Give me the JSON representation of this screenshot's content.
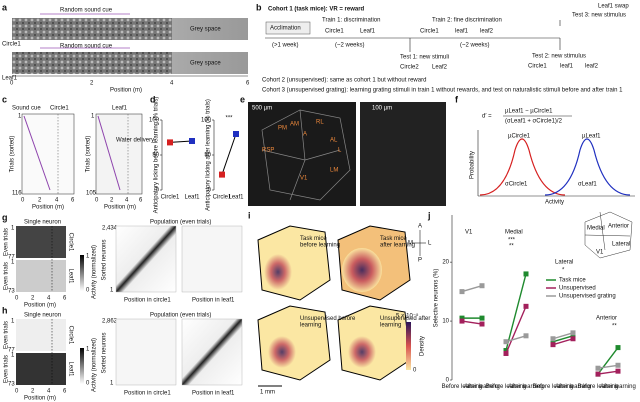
{
  "panel_a": {
    "letter": "a",
    "cue_top": "Random sound cue",
    "stim_top": "Circle1",
    "grey_top": "Grey space",
    "cue_bottom": "Random sound cue",
    "stim_bottom": "Leaf1",
    "grey_bottom": "Grey space",
    "x_label": "Position (m)",
    "x_ticks": [
      0,
      2,
      4,
      6
    ]
  },
  "panel_b": {
    "letter": "b",
    "cohort1": "Cohort 1 (task mice): VR = reward",
    "acclimation": "Acclimation",
    "acclimation_time": "(>1 week)",
    "train1": "Train 1: discrimination",
    "train1_time": "(~2 weeks)",
    "train1_stim": [
      "Circle1",
      "Leaf1"
    ],
    "test1": "Test 1: new stimuli",
    "test1_stim": [
      "Circle2",
      "Leaf2"
    ],
    "train2": "Train 2: fine discrimination",
    "train2_time": "(~2 weeks)",
    "train2_stim": [
      "Circle1",
      "leaf1",
      "leaf2"
    ],
    "test2": "Test 2: new stimulus",
    "test2_stim": [
      "Circle1",
      "leaf1",
      "leaf2"
    ],
    "test3": "Test 3: new stimulus",
    "test3_stim": "Leaf1 swap",
    "cohort2": "Cohort 2 (unsupervised): same as cohort 1 but without reward",
    "cohort3": "Cohort 3 (unsupervised grating): learning grating stimuli in train 1 without rewards, and test on naturalistic stimuli before and after train 1"
  },
  "panel_c": {
    "letter": "c",
    "sound_cue": "Sound cue",
    "left_title": "Circle1",
    "right_title": "Leaf1",
    "y_label_left": "Trials (sorted)",
    "y_label_right": "Trials (sorted)",
    "left_trials": [
      1,
      116
    ],
    "right_trials": [
      1,
      105
    ],
    "x_ticks_left": [
      0,
      2,
      4,
      6
    ],
    "x_ticks_right": [
      0,
      2,
      4,
      6
    ],
    "x_label_left": "Position (m)",
    "x_label_right": "Position (m)",
    "water": "Water delivery"
  },
  "panel_d": {
    "letter": "d",
    "before": {
      "y_label": "Anticipatory licking before learning (% trials)",
      "ylim": [
        0,
        100
      ],
      "yticks": [
        0,
        50,
        100
      ],
      "categories": [
        "Circle1",
        "Leaf1"
      ],
      "values": [
        68,
        70
      ],
      "colors": [
        "#d62020",
        "#2030c0"
      ]
    },
    "after": {
      "y_label": "Anticipatory licking after learning (% trials)",
      "ylim": [
        0,
        100
      ],
      "yticks": [
        0,
        50,
        100
      ],
      "categories": [
        "Circle1",
        "Leaf1"
      ],
      "values": [
        22,
        80
      ],
      "colors": [
        "#d62020",
        "#2030c0"
      ],
      "significance": "***"
    }
  },
  "panel_e": {
    "letter": "e",
    "scale_left": "500 µm",
    "scale_right": "100 µm",
    "areas": [
      "RSP",
      "PM",
      "AM",
      "RL",
      "A",
      "L",
      "AL",
      "LM",
      "V1"
    ]
  },
  "panel_f": {
    "letter": "f",
    "lhs": "d′ =",
    "numerator": "µLeaf1 − µCircle1",
    "denominator": "(σLeaf1 + σCircle1)/2",
    "mu_circle": "µCircle1",
    "mu_leaf": "µLeaf1",
    "sigma_circle": "σCircle1",
    "sigma_leaf": "σLeaf1",
    "y_label": "Probability",
    "x_label": "Activity"
  },
  "panel_g": {
    "letter": "g",
    "single": "Single neuron",
    "even_top": "Even trials",
    "even_bottom": "Even trials",
    "circle": "Circle1",
    "leaf": "Leaf1",
    "trial_top": [
      1,
      77
    ],
    "trial_bottom": [
      1,
      73
    ],
    "x_ticks": [
      0,
      2,
      4,
      6
    ],
    "x_label": "Position (m)",
    "cbar_label": "Activity (normalized)",
    "cbar_ticks": [
      0,
      1
    ],
    "population": "Population (even trials)",
    "n_neurons": "2,434",
    "sorted": "Sorted neurons",
    "first": 1,
    "x_label_circle": "Position in circle1",
    "x_label_leaf": "Position in leaf1"
  },
  "panel_h": {
    "letter": "h",
    "single": "Single neuron",
    "even_top": "Even trials",
    "even_bottom": "Even trials",
    "circle": "Circle1",
    "leaf": "Leaf1",
    "trial_top": [
      1,
      77
    ],
    "trial_bottom": [
      1,
      73
    ],
    "x_ticks": [
      0,
      2,
      4,
      6
    ],
    "x_label": "Position (m)",
    "cbar_label": "Activity (normalized)",
    "cbar_ticks": [
      0,
      1
    ],
    "population": "Population (even trials)",
    "n_neurons": "2,862",
    "sorted": "Sorted neurons",
    "first": 1,
    "x_label_circle": "Position in circle1",
    "x_label_leaf": "Position in leaf1"
  },
  "panel_i": {
    "letter": "i",
    "maps": [
      "Task mice before learning",
      "Task mice after learning",
      "Unsupervised before learning",
      "Unsupervised after learning"
    ],
    "compass": [
      "A",
      "P",
      "M",
      "L"
    ],
    "cbar_max": "5 × 10⁻⁵",
    "cbar_min": "0",
    "cbar_label": "Density",
    "scale": "1 mm"
  },
  "panel_j": {
    "letter": "j",
    "y_label": "Selective neurons (%)",
    "ylim": [
      0,
      28
    ],
    "yticks": [
      0,
      10,
      20
    ],
    "groups": [
      {
        "name": "V1",
        "x_labels": [
          "Before learning",
          "After learning"
        ]
      },
      {
        "name": "Medial",
        "x_labels": [
          "Before learning",
          "After learning"
        ]
      },
      {
        "name": "Lateral",
        "x_labels": [
          "Before learning",
          "After learning"
        ]
      },
      {
        "name": "Anterior",
        "x_labels": [
          "Before learning",
          "After learning"
        ]
      }
    ],
    "series": [
      {
        "name": "Task mice",
        "color": "#1f8a2e",
        "values": [
          [
            10.5,
            10.5
          ],
          [
            5,
            18
          ],
          [
            6.5,
            7.5
          ],
          [
            1,
            5.5
          ]
        ]
      },
      {
        "name": "Unsupervised",
        "color": "#a3205c",
        "values": [
          [
            10,
            9.5
          ],
          [
            4.5,
            12.5
          ],
          [
            6,
            7
          ],
          [
            1,
            1.5
          ]
        ]
      },
      {
        "name": "Unsupervised grating",
        "color": "#9a9a9a",
        "values": [
          [
            15,
            16
          ],
          [
            6.5,
            7.5
          ],
          [
            7,
            8
          ],
          [
            2,
            2.5
          ]
        ]
      }
    ],
    "annotations": [
      {
        "text": "***",
        "color": "#1f8a2e"
      },
      {
        "text": "**",
        "color": "#a3205c"
      },
      {
        "text": "*",
        "color": "#1f8a2e"
      },
      {
        "text": "**",
        "color": "#1f8a2e"
      }
    ],
    "inset": [
      "Medial",
      "Anterior",
      "Lateral",
      "V1"
    ]
  }
}
